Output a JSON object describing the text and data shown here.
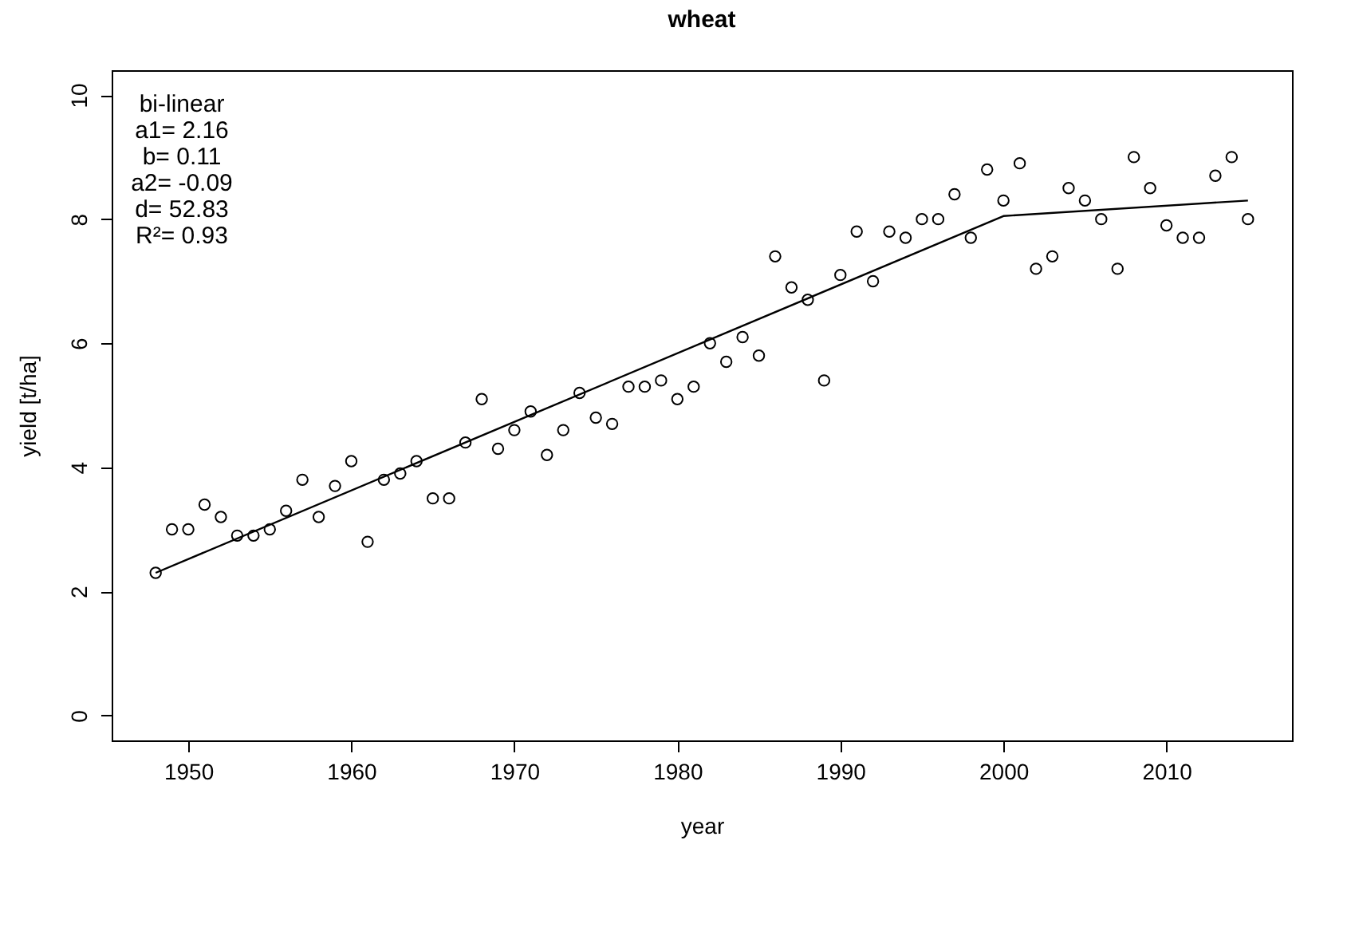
{
  "chart_data": {
    "type": "scatter",
    "title": "wheat",
    "xlabel": "year",
    "ylabel": "yield [t/ha]",
    "annotations": [
      "bi-linear",
      "a1= 2.16",
      "b= 0.11",
      "a2= -0.09",
      "d= 52.83",
      "R²= 0.93"
    ],
    "x": [
      1948,
      1949,
      1950,
      1951,
      1952,
      1953,
      1954,
      1955,
      1956,
      1957,
      1958,
      1959,
      1960,
      1961,
      1962,
      1963,
      1964,
      1965,
      1966,
      1967,
      1968,
      1969,
      1970,
      1971,
      1972,
      1973,
      1974,
      1975,
      1976,
      1977,
      1978,
      1979,
      1980,
      1981,
      1982,
      1983,
      1984,
      1985,
      1986,
      1987,
      1988,
      1989,
      1990,
      1991,
      1992,
      1993,
      1994,
      1995,
      1996,
      1997,
      1998,
      1999,
      2000,
      2001,
      2002,
      2003,
      2004,
      2005,
      2006,
      2007,
      2008,
      2009,
      2010,
      2011,
      2012,
      2013,
      2014,
      2015
    ],
    "series": [
      {
        "color": "#000000",
        "marker": "circle",
        "values": [
          2.3,
          3.0,
          3.0,
          3.4,
          3.2,
          2.9,
          2.9,
          3.0,
          3.3,
          3.8,
          3.2,
          3.7,
          4.1,
          2.8,
          3.8,
          3.9,
          4.1,
          3.5,
          3.5,
          4.4,
          5.1,
          4.3,
          4.6,
          4.9,
          4.2,
          4.6,
          5.2,
          4.8,
          4.7,
          5.3,
          5.3,
          5.4,
          5.1,
          5.3,
          6.0,
          5.7,
          6.1,
          5.8,
          7.4,
          6.9,
          6.7,
          5.4,
          7.1,
          7.8,
          7.0,
          7.8,
          7.7,
          8.0,
          8.0,
          8.4,
          7.7,
          8.8,
          8.3,
          8.9,
          7.2,
          7.4,
          8.5,
          8.3,
          8.0,
          7.2,
          9.0,
          8.5,
          7.9,
          7.7,
          7.7,
          8.7,
          9.0,
          8.0
        ]
      },
      {
        "type": "line",
        "color": "#000000",
        "marker": "none",
        "line_style": "solid",
        "x": [
          1948,
          2000,
          2015
        ],
        "values": [
          2.3,
          8.05,
          8.3
        ]
      }
    ],
    "xlim": [
      1945.3,
      2017.7
    ],
    "ylim": [
      -0.4,
      10.4
    ],
    "xticks": [
      1950,
      1960,
      1970,
      1980,
      1990,
      2000,
      2010
    ],
    "yticks": [
      0,
      2,
      4,
      6,
      8,
      10
    ],
    "grid": false
  }
}
